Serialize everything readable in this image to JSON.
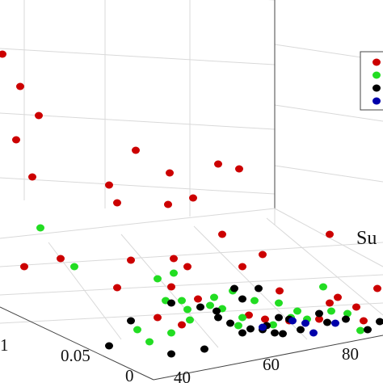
{
  "chart_data": {
    "type": "scatter",
    "projection": "3d",
    "grid": true,
    "legend": {
      "placement": "top-right",
      "entries": [
        {
          "color": "#cc0000"
        },
        {
          "color": "#22dd22"
        },
        {
          "color": "#000000"
        },
        {
          "color": "#0000aa"
        }
      ]
    },
    "x_axis": {
      "label": "Su",
      "ticks": [
        "40",
        "60",
        "80"
      ]
    },
    "y_axis": {
      "ticks": [
        "0",
        "0.05",
        "1"
      ]
    },
    "series": [
      {
        "color": "#cc0000",
        "points": [
          [
            3,
            67
          ],
          [
            25,
            107
          ],
          [
            20,
            173
          ],
          [
            48,
            143
          ],
          [
            40,
            219
          ],
          [
            168,
            186
          ],
          [
            210,
            214
          ],
          [
            135,
            229
          ],
          [
            145,
            251
          ],
          [
            208,
            253
          ],
          [
            239,
            245
          ],
          [
            270,
            203
          ],
          [
            296,
            209
          ],
          [
            30,
            330
          ],
          [
            75,
            320
          ],
          [
            145,
            356
          ],
          [
            162,
            322
          ],
          [
            215,
            320
          ],
          [
            232,
            330
          ],
          [
            275,
            290
          ],
          [
            325,
            315
          ],
          [
            300,
            330
          ],
          [
            212,
            355
          ],
          [
            245,
            370
          ],
          [
            195,
            393
          ],
          [
            225,
            402
          ],
          [
            408,
            290
          ],
          [
            346,
            360
          ],
          [
            408,
            375
          ],
          [
            441,
            380
          ],
          [
            450,
            397
          ],
          [
            418,
            368
          ],
          [
            395,
            395
          ],
          [
            308,
            390
          ],
          [
            328,
            395
          ],
          [
            358,
            397
          ],
          [
            467,
            357
          ]
        ]
      },
      {
        "color": "#22dd22",
        "points": [
          [
            50,
            282
          ],
          [
            92,
            330
          ],
          [
            195,
            345
          ],
          [
            215,
            338
          ],
          [
            232,
            383
          ],
          [
            205,
            372
          ],
          [
            260,
            378
          ],
          [
            300,
            393
          ],
          [
            212,
            412
          ],
          [
            235,
            396
          ],
          [
            265,
            368
          ],
          [
            315,
            372
          ],
          [
            345,
            375
          ],
          [
            368,
            385
          ],
          [
            400,
            355
          ],
          [
            430,
            388
          ],
          [
            170,
            408
          ],
          [
            185,
            423
          ],
          [
            295,
            403
          ],
          [
            338,
            402
          ],
          [
            380,
            395
          ],
          [
            446,
            409
          ],
          [
            410,
            385
          ],
          [
            360,
            393
          ],
          [
            288,
            360
          ],
          [
            275,
            382
          ],
          [
            225,
            372
          ]
        ]
      },
      {
        "color": "#000000",
        "points": [
          [
            135,
            428
          ],
          [
            162,
            397
          ],
          [
            212,
            375
          ],
          [
            248,
            380
          ],
          [
            268,
            385
          ],
          [
            270,
            393
          ],
          [
            285,
            400
          ],
          [
            290,
            357
          ],
          [
            320,
            357
          ],
          [
            300,
            412
          ],
          [
            325,
            408
          ],
          [
            340,
            412
          ],
          [
            350,
            413
          ],
          [
            345,
            393
          ],
          [
            372,
            408
          ],
          [
            358,
            395
          ],
          [
            395,
            388
          ],
          [
            405,
            399
          ],
          [
            428,
            395
          ],
          [
            470,
            398
          ],
          [
            455,
            408
          ],
          [
            253,
            432
          ],
          [
            212,
            438
          ],
          [
            310,
            407
          ],
          [
            330,
            403
          ],
          [
            300,
            370
          ]
        ]
      },
      {
        "color": "#0000aa",
        "points": [
          [
            378,
            400
          ],
          [
            415,
            400
          ],
          [
            325,
            405
          ],
          [
            388,
            412
          ],
          [
            362,
            397
          ]
        ]
      }
    ]
  }
}
